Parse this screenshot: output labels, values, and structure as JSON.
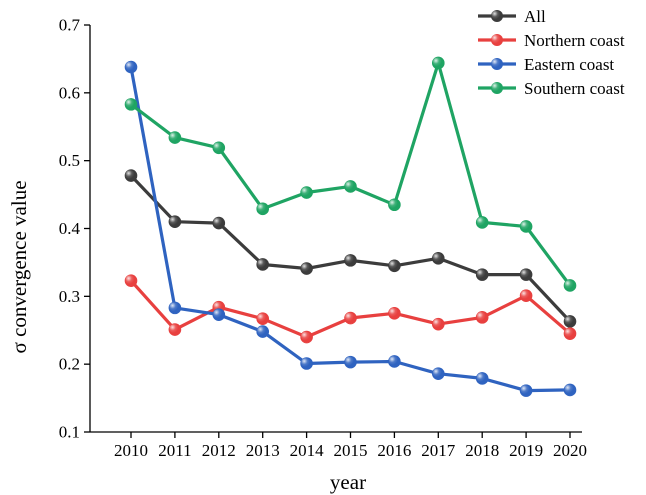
{
  "chart_data": {
    "type": "line",
    "xlabel": "year",
    "ylabel": "σ convergence value",
    "ylim": [
      0.1,
      0.7
    ],
    "yticks": [
      0.1,
      0.2,
      0.3,
      0.4,
      0.5,
      0.6,
      0.7
    ],
    "categories": [
      "2010",
      "2011",
      "2012",
      "2013",
      "2014",
      "2015",
      "2016",
      "2017",
      "2018",
      "2019",
      "2020"
    ],
    "grid": false,
    "legend_position": "top-right",
    "series": [
      {
        "name": "All",
        "color": "#3c3c3c",
        "values": [
          0.478,
          0.41,
          0.408,
          0.347,
          0.341,
          0.353,
          0.345,
          0.356,
          0.332,
          0.332,
          0.263
        ]
      },
      {
        "name": "Northern coast",
        "color": "#e8403f",
        "values": [
          0.323,
          0.251,
          0.284,
          0.267,
          0.24,
          0.268,
          0.275,
          0.259,
          0.269,
          0.301,
          0.245
        ]
      },
      {
        "name": "Eastern coast",
        "color": "#2f63c0",
        "values": [
          0.638,
          0.283,
          0.273,
          0.248,
          0.201,
          0.203,
          0.204,
          0.186,
          0.179,
          0.161,
          0.162
        ]
      },
      {
        "name": "Southern coast",
        "color": "#1fa463",
        "values": [
          0.583,
          0.534,
          0.519,
          0.429,
          0.453,
          0.462,
          0.435,
          0.644,
          0.409,
          0.403,
          0.316
        ]
      }
    ]
  }
}
